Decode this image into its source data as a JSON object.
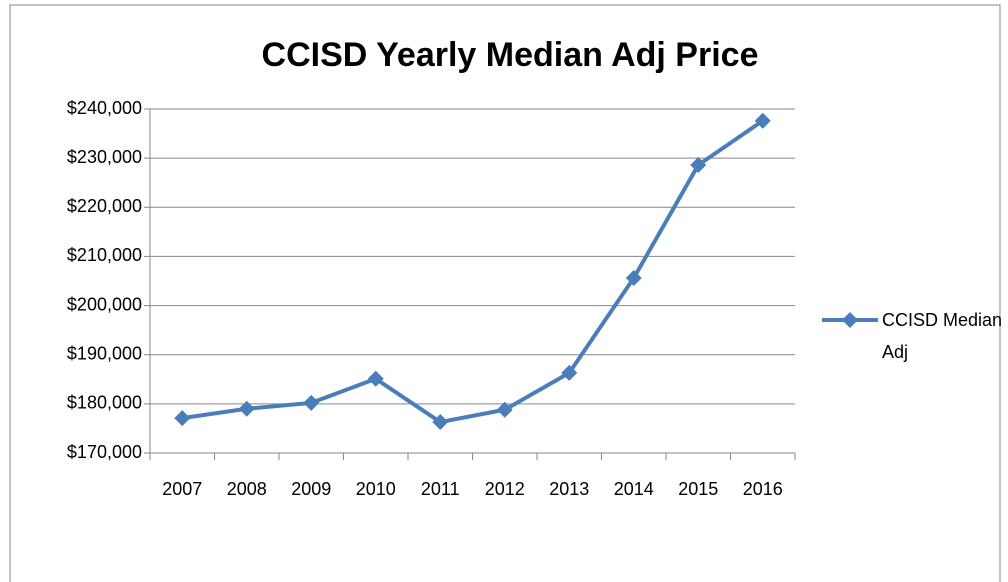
{
  "chart_data": {
    "type": "line",
    "title": "CCISD Yearly Median Adj Price",
    "categories": [
      "2007",
      "2008",
      "2009",
      "2010",
      "2011",
      "2012",
      "2013",
      "2014",
      "2015",
      "2016"
    ],
    "series": [
      {
        "name": "CCISD Median Adj",
        "color": "#4a7ebb",
        "values": [
          177100,
          179000,
          180200,
          185100,
          176300,
          178800,
          186300,
          205600,
          228600,
          237600
        ]
      }
    ],
    "ylim": [
      170000,
      240000
    ],
    "yticks": [
      {
        "value": 170000,
        "label": "$170,000"
      },
      {
        "value": 180000,
        "label": "$180,000"
      },
      {
        "value": 190000,
        "label": "$190,000"
      },
      {
        "value": 200000,
        "label": "$200,000"
      },
      {
        "value": 210000,
        "label": "$210,000"
      },
      {
        "value": 220000,
        "label": "$220,000"
      },
      {
        "value": 230000,
        "label": "$230,000"
      },
      {
        "value": 240000,
        "label": "$240,000"
      }
    ],
    "grid": true,
    "legend": "right"
  }
}
